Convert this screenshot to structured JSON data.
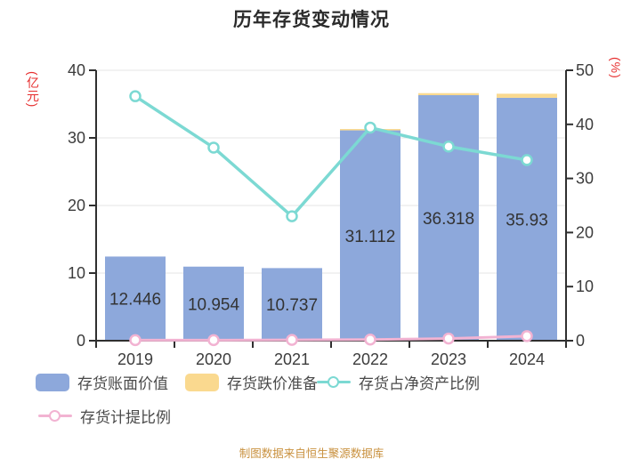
{
  "chart_data": {
    "type": "bar",
    "title": "历年存货变动情况",
    "categories": [
      "2019",
      "2020",
      "2021",
      "2022",
      "2023",
      "2024"
    ],
    "series": [
      {
        "name": "存货账面价值",
        "type": "bar",
        "axis": "left",
        "color": "#8DA8DB",
        "values": [
          12.446,
          10.954,
          10.737,
          31.112,
          36.318,
          35.93
        ],
        "labels": [
          "12.446",
          "10.954",
          "10.737",
          "31.112",
          "36.318",
          "35.93"
        ]
      },
      {
        "name": "存货跌价准备",
        "type": "bar",
        "axis": "left",
        "stacked_on": "存货账面价值",
        "color": "#FAD98F",
        "values": [
          0,
          0,
          0,
          0.2,
          0.3,
          0.6
        ]
      },
      {
        "name": "存货占净资产比例",
        "type": "line",
        "axis": "right",
        "color": "#7CD9D3",
        "values": [
          45.2,
          35.7,
          23.0,
          39.4,
          35.9,
          33.4
        ]
      },
      {
        "name": "存货计提比例",
        "type": "line",
        "axis": "right",
        "color": "#F2B3D2",
        "values": [
          0.1,
          0.1,
          0.15,
          0.2,
          0.4,
          0.85
        ]
      }
    ],
    "left_axis": {
      "unit": "(亿元)",
      "min": 0,
      "max": 40,
      "ticks": [
        0,
        10,
        20,
        30,
        40
      ]
    },
    "right_axis": {
      "unit": "(%)",
      "min": 0,
      "max": 50,
      "ticks": [
        0,
        10,
        20,
        30,
        40,
        50
      ]
    },
    "grid": true,
    "legend_position": "bottom",
    "footer": "制图数据来自恒生聚源数据库"
  },
  "legend": {
    "items": [
      {
        "label": "存货账面价值",
        "marker": "square",
        "color": "#8DA8DB"
      },
      {
        "label": "存货跌价准备",
        "marker": "square",
        "color": "#FAD98F"
      },
      {
        "label": "存货占净资产比例",
        "marker": "line-circle",
        "color": "#7CD9D3"
      },
      {
        "label": "存货计提比例",
        "marker": "line-circle",
        "color": "#F2B3D2"
      }
    ]
  },
  "colors": {
    "bar_primary": "#8DA8DB",
    "bar_secondary": "#FAD98F",
    "line_teal": "#7CD9D3",
    "line_pink": "#F2B3D2",
    "axis": "#2f2f2f",
    "grid": "#e4e4e4",
    "tick_text": "#3c3c3c",
    "value_text": "#333333",
    "unit_red": "#e62e2e",
    "footer_text": "#c9913f"
  }
}
